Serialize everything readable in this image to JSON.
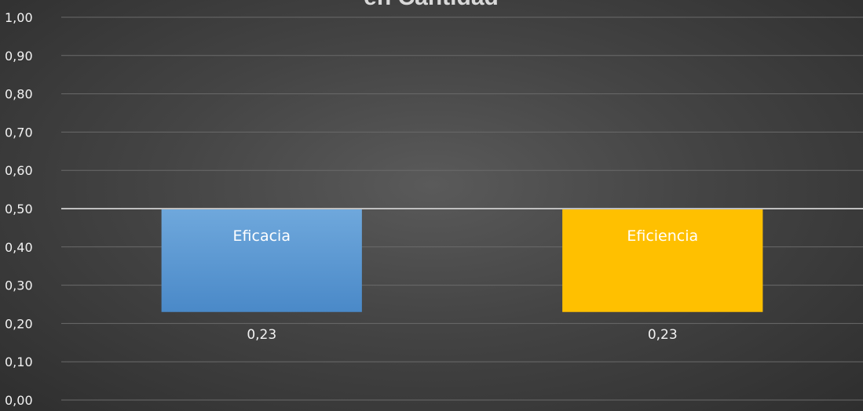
{
  "chart_data": {
    "type": "bar",
    "title": "en Cantidad",
    "categories": [
      "Eficacia",
      "Eficiencia"
    ],
    "series": [
      {
        "values": [
          0.23,
          0.23
        ],
        "colors": [
          "#5b9bd5",
          "#ffc000"
        ]
      }
    ],
    "bar_base": 0.5,
    "data_labels": [
      "0,23",
      "0,23"
    ],
    "ylim": [
      0.0,
      1.0
    ],
    "y_ticks": [
      "0,00",
      "0,10",
      "0,20",
      "0,30",
      "0,40",
      "0,50",
      "0,60",
      "0,70",
      "0,80",
      "0,90",
      "1,00"
    ],
    "grid": true,
    "legend": "none",
    "reference_line": 0.5
  }
}
